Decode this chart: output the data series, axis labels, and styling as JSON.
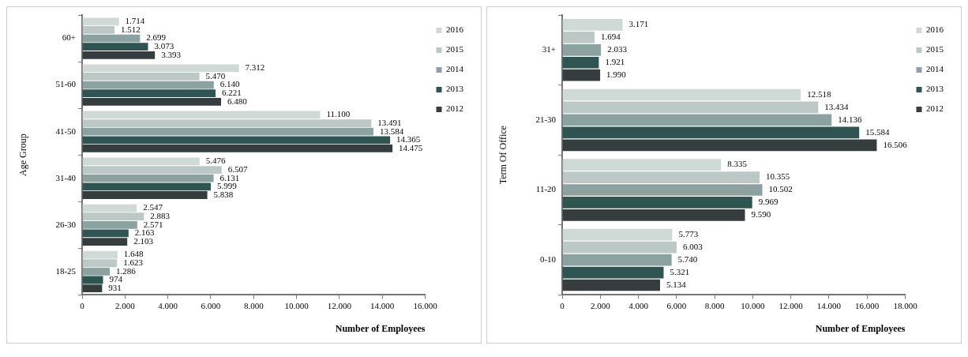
{
  "chart_data": [
    {
      "type": "bar",
      "orientation": "horizontal",
      "xlabel": "Number of Employees",
      "ylabel": "Age Group",
      "legend": "top right",
      "categories": [
        "60+",
        "51-60",
        "41-50",
        "31-40",
        "26-30",
        "18-25"
      ],
      "series": [
        {
          "name": "2016",
          "color": "#cfd9d6",
          "values": [
            1714,
            7312,
            11100,
            5476,
            2547,
            1648
          ],
          "value_labels": [
            "1.714",
            "7.312",
            "11.100",
            "5.476",
            "2.547",
            "1.648"
          ]
        },
        {
          "name": "2015",
          "color": "#bcc8c6",
          "values": [
            1512,
            5470,
            13491,
            6507,
            2883,
            1623
          ],
          "value_labels": [
            "1.512",
            "5.470",
            "13.491",
            "6.507",
            "2.883",
            "1.623"
          ]
        },
        {
          "name": "2014",
          "color": "#8ca2a1",
          "values": [
            2699,
            6140,
            13584,
            6131,
            2571,
            1286
          ],
          "value_labels": [
            "2.699",
            "6.140",
            "13.584",
            "6.131",
            "2.571",
            "1.286"
          ]
        },
        {
          "name": "2013",
          "color": "#2e5551",
          "values": [
            3073,
            6221,
            14365,
            5999,
            2163,
            974
          ],
          "value_labels": [
            "3.073",
            "6.221",
            "14.365",
            "5.999",
            "2.163",
            "974"
          ]
        },
        {
          "name": "2012",
          "color": "#363d3e",
          "values": [
            3393,
            6480,
            14475,
            5838,
            2103,
            931
          ],
          "value_labels": [
            "3.393",
            "6.480",
            "14.475",
            "5.838",
            "2.103",
            "931"
          ]
        }
      ],
      "xlim": [
        0,
        16000
      ],
      "xticks": [
        0,
        {
          "value": 2000,
          "label": "2.000"
        },
        {
          "value": 4000,
          "label": "4.000"
        },
        {
          "value": 6000,
          "label": "6.000"
        },
        {
          "value": 8000,
          "label": "8.000"
        },
        {
          "value": 10000,
          "label": "10.000"
        },
        {
          "value": 12000,
          "label": "12.000"
        },
        {
          "value": 14000,
          "label": "14.000"
        },
        {
          "value": 16000,
          "label": "16.000"
        }
      ]
    },
    {
      "type": "bar",
      "orientation": "horizontal",
      "xlabel": "Number of Employees",
      "ylabel": "Term Of Office",
      "legend": "top right",
      "categories": [
        "31+",
        "21-30",
        "11-20",
        "0-10"
      ],
      "series": [
        {
          "name": "2016",
          "color": "#cfd9d6",
          "values": [
            3171,
            12518,
            8335,
            5773
          ],
          "value_labels": [
            "3.171",
            "12.518",
            "8.335",
            "5.773"
          ]
        },
        {
          "name": "2015",
          "color": "#bcc8c6",
          "values": [
            1694,
            13434,
            10355,
            6003
          ],
          "value_labels": [
            "1.694",
            "13.434",
            "10.355",
            "6.003"
          ]
        },
        {
          "name": "2014",
          "color": "#8ca2a1",
          "values": [
            2033,
            14136,
            10502,
            5740
          ],
          "value_labels": [
            "2.033",
            "14.136",
            "10.502",
            "5.740"
          ]
        },
        {
          "name": "2013",
          "color": "#2e5551",
          "values": [
            1921,
            15584,
            9969,
            5321
          ],
          "value_labels": [
            "1.921",
            "15.584",
            "9.969",
            "5.321"
          ]
        },
        {
          "name": "2012",
          "color": "#363d3e",
          "values": [
            1990,
            16506,
            9590,
            5134
          ],
          "value_labels": [
            "1.990",
            "16.506",
            "9.590",
            "5.134"
          ]
        }
      ],
      "xlim": [
        0,
        18000
      ],
      "xticks": [
        0,
        {
          "value": 2000,
          "label": "2.000"
        },
        {
          "value": 4000,
          "label": "4.000"
        },
        {
          "value": 6000,
          "label": "6.000"
        },
        {
          "value": 8000,
          "label": "8.000"
        },
        {
          "value": 10000,
          "label": "10.000"
        },
        {
          "value": 12000,
          "label": "12.000"
        },
        {
          "value": 14000,
          "label": "14.000"
        },
        {
          "value": 16000,
          "label": "16.000"
        },
        {
          "value": 18000,
          "label": "18.000"
        }
      ]
    }
  ]
}
